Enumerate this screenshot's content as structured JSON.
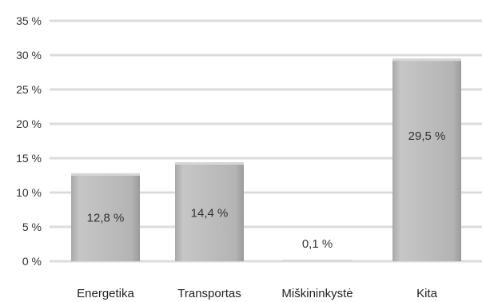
{
  "chart_data": {
    "type": "bar",
    "categories": [
      "Energetika",
      "Transportas",
      "Miškininkystė",
      "Kita"
    ],
    "values": [
      12.8,
      14.4,
      0.1,
      29.5
    ],
    "data_labels": [
      "12,8 %",
      "14,4 %",
      "0,1 %",
      "29,5 %"
    ],
    "y_ticks": [
      0,
      5,
      10,
      15,
      20,
      25,
      30,
      35
    ],
    "y_tick_labels": [
      "0 %",
      "5 %",
      "10 %",
      "15 %",
      "20 %",
      "25 %",
      "30 %",
      "35 %"
    ],
    "ylim": [
      0,
      35
    ],
    "grid": true,
    "legend": "none",
    "title": "",
    "xlabel": "",
    "ylabel": "",
    "colors": {
      "bar": "#b9b9b9",
      "bar_light": "#cfcfcf",
      "bar_dark": "#9c9c9c",
      "grid": "#dcdcdc"
    }
  }
}
